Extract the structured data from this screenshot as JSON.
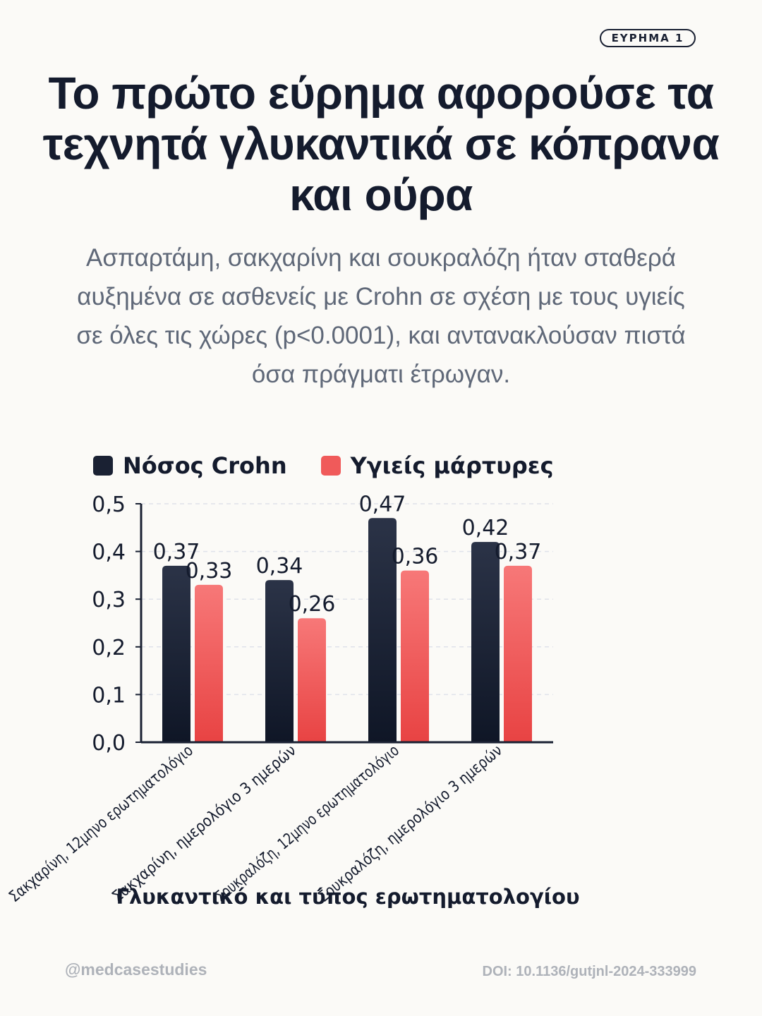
{
  "badge": "ΕΥΡΗΜΑ 1",
  "title": "Το πρώτο εύρημα αφορούσε τα τεχνητά γλυκαντικά σε κόπρανα και ούρα",
  "subtitle": "Ασπαρτάμη, σακχαρίνη και σουκραλόζη ήταν σταθερά αυξημένα σε ασθενείς με Crohn σε σχέση με τους υγιείς σε όλες τις χώρες (p<0.0001), και αντανακλούσαν πιστά όσα πράγματι έτρωγαν.",
  "colors": {
    "crohn_top": "#2b3347",
    "crohn_bottom": "#0f1626",
    "control_top": "#f77878",
    "control_bottom": "#e84343",
    "text_dark": "#141b2d",
    "grid": "#dfe2ea"
  },
  "chart_data": {
    "type": "bar",
    "categories": [
      "Σακχαρίνη, 12μηνο ερωτηματολόγιο",
      "Σακχαρίνη, ημερολόγιο 3 ημερών",
      "Σουκραλόζη, 12μηνο ερωτηματολόγιο",
      "Σουκραλόζη, ημερολόγιο 3 ημερών"
    ],
    "series": [
      {
        "name": "Νόσος Crohn",
        "values": [
          0.37,
          0.34,
          0.47,
          0.42
        ],
        "labels": [
          "0,37",
          "0,34",
          "0,47",
          "0,42"
        ]
      },
      {
        "name": "Υγιείς μάρτυρες",
        "values": [
          0.33,
          0.26,
          0.36,
          0.37
        ],
        "labels": [
          "0,33",
          "0,26",
          "0,36",
          "0,37"
        ]
      }
    ],
    "xlabel": "Γλυκαντικό και τύπος ερωτηματολογίου",
    "ylabel": "",
    "ylim": [
      0,
      0.5
    ],
    "yticks": [
      "0,0",
      "0,1",
      "0,2",
      "0,3",
      "0,4",
      "0,5"
    ],
    "grid": true,
    "legend": "top-left"
  },
  "footer": {
    "handle": "@medcasestudies",
    "doi": "DOI: 10.1136/gutjnl-2024-333999"
  }
}
